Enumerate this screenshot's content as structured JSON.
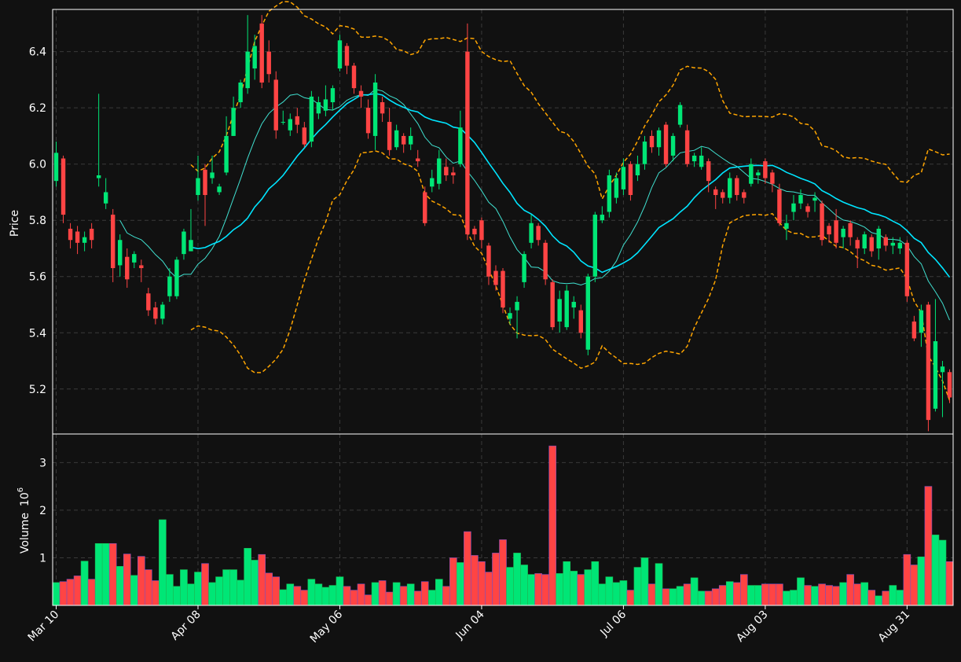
{
  "chart_data": {
    "type": "candlestick",
    "price_axis": {
      "label": "Price",
      "ticks": [
        "5.2",
        "5.4",
        "5.6",
        "5.8",
        "6.0",
        "6.2",
        "6.4"
      ],
      "range": [
        5.04,
        6.55
      ]
    },
    "volume_axis": {
      "label": "Volume",
      "exponent_base": "10",
      "exponent": "6",
      "ticks": [
        "1",
        "2",
        "3"
      ],
      "range": [
        0,
        3.6
      ]
    },
    "x_tick_labels": [
      {
        "label": "Mar 10",
        "index": 0
      },
      {
        "label": "Apr 08",
        "index": 20
      },
      {
        "label": "May 06",
        "index": 40
      },
      {
        "label": "Jun 04",
        "index": 60
      },
      {
        "label": "Jul 06",
        "index": 80
      },
      {
        "label": "Aug 03",
        "index": 100
      },
      {
        "label": "Aug 31",
        "index": 120
      }
    ],
    "grid": true,
    "colors": {
      "up": "#00e676",
      "down": "#ff4444",
      "sma_fast": "#40e0d0",
      "sma_slow": "#00e5ff",
      "bands": "#ffa500",
      "background": "#111111",
      "grid": "#3a3a3a"
    },
    "candles": [
      [
        5.94,
        6.04,
        6.08,
        5.92
      ],
      [
        6.02,
        5.82,
        6.03,
        5.79
      ],
      [
        5.77,
        5.73,
        5.79,
        5.7
      ],
      [
        5.76,
        5.72,
        5.78,
        5.68
      ],
      [
        5.72,
        5.74,
        5.76,
        5.69
      ],
      [
        5.77,
        5.73,
        5.79,
        5.7
      ],
      [
        5.95,
        5.96,
        6.25,
        5.92
      ],
      [
        5.86,
        5.9,
        5.95,
        5.84
      ],
      [
        5.82,
        5.63,
        5.84,
        5.58
      ],
      [
        5.64,
        5.73,
        5.75,
        5.6
      ],
      [
        5.67,
        5.59,
        5.7,
        5.56
      ],
      [
        5.65,
        5.68,
        5.69,
        5.63
      ],
      [
        5.64,
        5.63,
        5.66,
        5.58
      ],
      [
        5.54,
        5.48,
        5.56,
        5.46
      ],
      [
        5.49,
        5.45,
        5.51,
        5.43
      ],
      [
        5.45,
        5.5,
        5.51,
        5.43
      ],
      [
        5.53,
        5.6,
        5.63,
        5.51
      ],
      [
        5.53,
        5.66,
        5.67,
        5.52
      ],
      [
        5.68,
        5.76,
        5.77,
        5.66
      ],
      [
        5.69,
        5.73,
        5.84,
        5.69
      ],
      [
        5.89,
        5.95,
        6.03,
        5.87
      ],
      [
        5.98,
        5.89,
        6.0,
        5.78
      ],
      [
        5.95,
        5.97,
        6.03,
        5.93
      ],
      [
        5.9,
        5.92,
        5.93,
        5.89
      ],
      [
        5.97,
        6.1,
        6.17,
        5.96
      ],
      [
        6.1,
        6.2,
        6.24,
        6.1
      ],
      [
        6.22,
        6.29,
        6.3,
        6.2
      ],
      [
        6.27,
        6.4,
        6.53,
        6.25
      ],
      [
        6.34,
        6.42,
        6.46,
        6.3
      ],
      [
        6.5,
        6.29,
        6.53,
        6.27
      ],
      [
        6.4,
        6.32,
        6.44,
        6.29
      ],
      [
        6.3,
        6.12,
        6.33,
        6.09
      ],
      [
        6.15,
        6.15,
        6.19,
        6.14
      ],
      [
        6.12,
        6.16,
        6.18,
        6.1
      ],
      [
        6.17,
        6.14,
        6.2,
        6.11
      ],
      [
        6.13,
        6.07,
        6.15,
        6.06
      ],
      [
        6.08,
        6.24,
        6.26,
        6.06
      ],
      [
        6.18,
        6.22,
        6.24,
        6.16
      ],
      [
        6.19,
        6.23,
        6.28,
        6.17
      ],
      [
        6.22,
        6.27,
        6.28,
        6.19
      ],
      [
        6.34,
        6.44,
        6.46,
        6.33
      ],
      [
        6.42,
        6.35,
        6.43,
        6.32
      ],
      [
        6.35,
        6.27,
        6.36,
        6.25
      ],
      [
        6.26,
        6.24,
        6.28,
        6.2
      ],
      [
        6.2,
        6.11,
        6.23,
        6.09
      ],
      [
        6.1,
        6.29,
        6.32,
        6.05
      ],
      [
        6.22,
        6.18,
        6.24,
        6.15
      ],
      [
        6.15,
        6.05,
        6.2,
        6.03
      ],
      [
        6.06,
        6.12,
        6.14,
        6.05
      ],
      [
        6.1,
        6.07,
        6.11,
        6.04
      ],
      [
        6.07,
        6.1,
        6.13,
        6.05
      ],
      [
        6.02,
        6.01,
        6.05,
        5.99
      ],
      [
        5.9,
        5.79,
        5.92,
        5.78
      ],
      [
        5.92,
        5.95,
        5.98,
        5.9
      ],
      [
        5.93,
        6.02,
        6.05,
        5.91
      ],
      [
        5.99,
        5.96,
        6.02,
        5.94
      ],
      [
        5.97,
        5.96,
        5.99,
        5.93
      ],
      [
        6.0,
        6.13,
        6.19,
        5.99
      ],
      [
        6.4,
        5.75,
        6.5,
        5.73
      ],
      [
        5.77,
        5.75,
        5.78,
        5.73
      ],
      [
        5.8,
        5.73,
        5.81,
        5.7
      ],
      [
        5.71,
        5.6,
        5.72,
        5.57
      ],
      [
        5.62,
        5.57,
        5.64,
        5.55
      ],
      [
        5.62,
        5.49,
        5.63,
        5.47
      ],
      [
        5.45,
        5.47,
        5.49,
        5.43
      ],
      [
        5.48,
        5.51,
        5.53,
        5.38
      ],
      [
        5.58,
        5.68,
        5.69,
        5.56
      ],
      [
        5.72,
        5.79,
        5.82,
        5.7
      ],
      [
        5.78,
        5.73,
        5.79,
        5.71
      ],
      [
        5.72,
        5.59,
        5.73,
        5.57
      ],
      [
        5.58,
        5.42,
        5.59,
        5.41
      ],
      [
        5.44,
        5.52,
        5.55,
        5.4
      ],
      [
        5.42,
        5.55,
        5.57,
        5.41
      ],
      [
        5.49,
        5.51,
        5.53,
        5.45
      ],
      [
        5.48,
        5.4,
        5.5,
        5.38
      ],
      [
        5.34,
        5.6,
        5.61,
        5.32
      ],
      [
        5.6,
        5.82,
        5.83,
        5.58
      ],
      [
        5.8,
        5.82,
        5.85,
        5.79
      ],
      [
        5.83,
        5.96,
        5.98,
        5.81
      ],
      [
        5.88,
        5.95,
        5.97,
        5.86
      ],
      [
        5.91,
        5.99,
        6.02,
        5.89
      ],
      [
        6.0,
        5.89,
        6.01,
        5.87
      ],
      [
        5.96,
        6.0,
        6.03,
        5.94
      ],
      [
        6.0,
        6.08,
        6.1,
        5.98
      ],
      [
        6.1,
        6.06,
        6.12,
        6.04
      ],
      [
        6.06,
        6.12,
        6.13,
        6.03
      ],
      [
        6.14,
        6.0,
        6.15,
        5.99
      ],
      [
        6.03,
        6.1,
        6.11,
        6.01
      ],
      [
        6.14,
        6.21,
        6.22,
        6.13
      ],
      [
        6.12,
        6.0,
        6.14,
        5.99
      ],
      [
        6.01,
        6.03,
        6.04,
        5.99
      ],
      [
        5.99,
        6.03,
        6.06,
        5.98
      ],
      [
        6.01,
        5.94,
        6.02,
        5.9
      ],
      [
        5.91,
        5.89,
        5.92,
        5.84
      ],
      [
        5.9,
        5.88,
        5.91,
        5.86
      ],
      [
        5.88,
        5.95,
        5.97,
        5.86
      ],
      [
        5.95,
        5.89,
        5.96,
        5.87
      ],
      [
        5.9,
        5.88,
        5.91,
        5.86
      ],
      [
        5.93,
        6.0,
        6.02,
        5.92
      ],
      [
        5.96,
        5.97,
        5.98,
        5.93
      ],
      [
        6.01,
        5.95,
        6.02,
        5.93
      ],
      [
        5.97,
        5.93,
        5.98,
        5.9
      ],
      [
        5.91,
        5.79,
        5.93,
        5.78
      ],
      [
        5.77,
        5.79,
        5.82,
        5.73
      ],
      [
        5.83,
        5.86,
        5.89,
        5.8
      ],
      [
        5.86,
        5.89,
        5.91,
        5.84
      ],
      [
        5.85,
        5.83,
        5.86,
        5.81
      ],
      [
        5.87,
        5.88,
        5.9,
        5.83
      ],
      [
        5.86,
        5.73,
        5.87,
        5.71
      ],
      [
        5.78,
        5.75,
        5.79,
        5.72
      ],
      [
        5.8,
        5.72,
        5.84,
        5.7
      ],
      [
        5.74,
        5.77,
        5.78,
        5.7
      ],
      [
        5.79,
        5.74,
        5.8,
        5.71
      ],
      [
        5.73,
        5.7,
        5.74,
        5.63
      ],
      [
        5.7,
        5.75,
        5.76,
        5.68
      ],
      [
        5.74,
        5.69,
        5.75,
        5.67
      ],
      [
        5.7,
        5.77,
        5.78,
        5.66
      ],
      [
        5.74,
        5.71,
        5.75,
        5.69
      ],
      [
        5.71,
        5.72,
        5.74,
        5.68
      ],
      [
        5.7,
        5.72,
        5.74,
        5.68
      ],
      [
        5.72,
        5.53,
        5.73,
        5.51
      ],
      [
        5.44,
        5.38,
        5.46,
        5.37
      ],
      [
        5.4,
        5.48,
        5.5,
        5.35
      ],
      [
        5.5,
        5.09,
        5.51,
        5.05
      ],
      [
        5.13,
        5.37,
        5.52,
        5.12
      ],
      [
        5.26,
        5.28,
        5.3,
        5.1
      ],
      [
        5.26,
        5.17,
        5.27,
        5.15
      ]
    ],
    "volume": [
      0.48,
      0.5,
      0.55,
      0.62,
      0.93,
      0.55,
      1.3,
      1.3,
      1.3,
      0.82,
      1.08,
      0.63,
      1.03,
      0.75,
      0.52,
      1.8,
      0.65,
      0.4,
      0.75,
      0.45,
      0.7,
      0.88,
      0.48,
      0.6,
      0.75,
      0.75,
      0.53,
      1.2,
      0.95,
      1.07,
      0.68,
      0.6,
      0.33,
      0.45,
      0.4,
      0.32,
      0.55,
      0.45,
      0.38,
      0.42,
      0.6,
      0.4,
      0.32,
      0.45,
      0.22,
      0.48,
      0.52,
      0.28,
      0.48,
      0.4,
      0.45,
      0.3,
      0.5,
      0.32,
      0.55,
      0.4,
      1.0,
      0.9,
      1.55,
      1.05,
      0.92,
      0.7,
      1.1,
      1.38,
      0.8,
      1.1,
      0.85,
      0.65,
      0.67,
      0.65,
      3.35,
      0.67,
      0.92,
      0.72,
      0.65,
      0.75,
      0.92,
      0.45,
      0.6,
      0.48,
      0.52,
      0.32,
      0.8,
      1.0,
      0.45,
      0.88,
      0.35,
      0.35,
      0.4,
      0.45,
      0.58,
      0.3,
      0.3,
      0.35,
      0.42,
      0.5,
      0.48,
      0.65,
      0.42,
      0.42,
      0.45,
      0.45,
      0.45,
      0.3,
      0.32,
      0.58,
      0.42,
      0.4,
      0.45,
      0.42,
      0.4,
      0.48,
      0.65,
      0.45,
      0.48,
      0.32,
      0.2,
      0.3,
      0.42,
      0.32,
      1.07,
      0.85,
      1.02,
      2.5,
      1.48,
      1.37,
      0.92
    ]
  }
}
